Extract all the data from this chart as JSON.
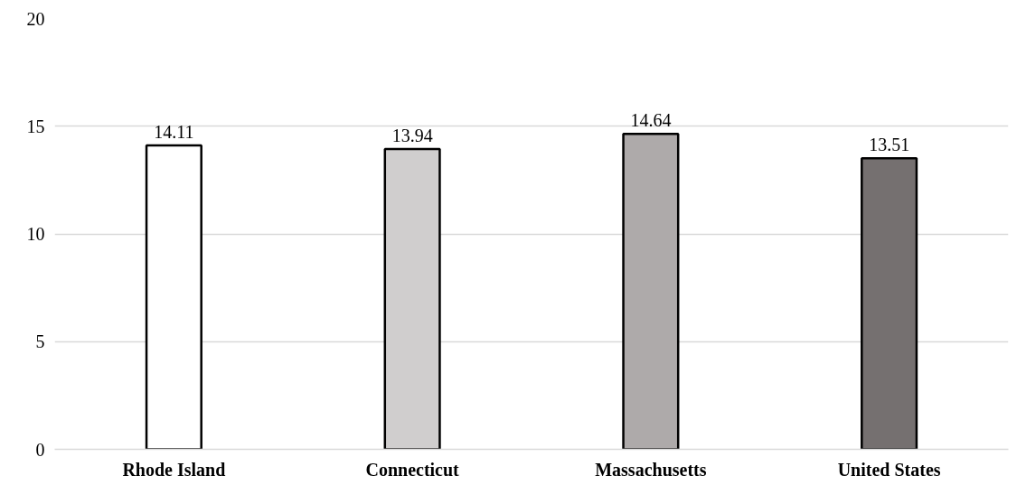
{
  "chart_data": {
    "type": "bar",
    "categories": [
      "Rhode Island",
      "Connecticut",
      "Massachusetts",
      "United States"
    ],
    "values": [
      14.11,
      13.94,
      14.64,
      13.51
    ],
    "colors": [
      "#ffffff",
      "#d0cece",
      "#aeaaaa",
      "#757070"
    ],
    "ylim": [
      0,
      20
    ],
    "yticks": [
      0,
      5,
      10,
      15,
      20
    ],
    "grid": "y",
    "data_labels": true
  }
}
